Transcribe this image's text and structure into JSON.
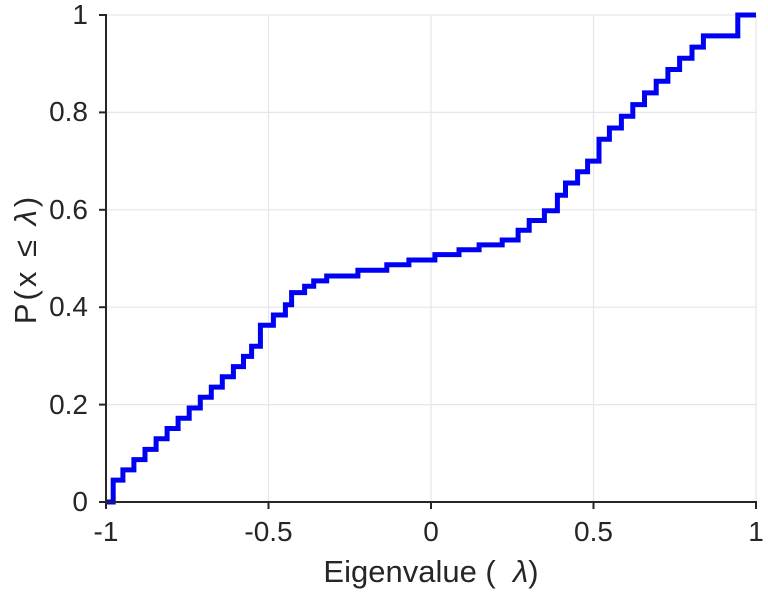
{
  "figure": {
    "background": "#ffffff",
    "axis_color": "#262626",
    "text_color": "#262626"
  },
  "chart_data": {
    "type": "line",
    "line_style": "stairs",
    "title": "",
    "xlabel": {
      "prefix": "Eigenvalue (  ",
      "lambda": "λ",
      "suffix": ")"
    },
    "ylabel": {
      "prefix": "P(x ≤ ",
      "lambda": "λ",
      "suffix": ")"
    },
    "xlim": [
      -1,
      1
    ],
    "ylim": [
      0,
      1
    ],
    "xticks": [
      {
        "value": -1,
        "label": "-1"
      },
      {
        "value": -0.5,
        "label": "-0.5"
      },
      {
        "value": 0,
        "label": "0"
      },
      {
        "value": 0.5,
        "label": "0.5"
      },
      {
        "value": 1,
        "label": "1"
      }
    ],
    "yticks": [
      {
        "value": 0,
        "label": "0"
      },
      {
        "value": 0.2,
        "label": "0.2"
      },
      {
        "value": 0.4,
        "label": "0.4"
      },
      {
        "value": 0.6,
        "label": "0.6"
      },
      {
        "value": 0.8,
        "label": "0.8"
      },
      {
        "value": 1,
        "label": "1"
      }
    ],
    "grid": {
      "show": true,
      "color": "#e6e6e6",
      "x_values": [
        -0.5,
        0,
        0.5,
        1
      ],
      "y_values": [
        0.2,
        0.4,
        0.6,
        0.8,
        1
      ]
    },
    "series": [
      {
        "name": "empirical-cdf-of-eigenvalues",
        "color": "#0000f5",
        "line_width": 5,
        "start": [
          -1,
          0
        ],
        "end_x": 1,
        "points": [
          [
            -0.978,
            0.045
          ],
          [
            -0.948,
            0.066
          ],
          [
            -0.914,
            0.087
          ],
          [
            -0.88,
            0.108
          ],
          [
            -0.846,
            0.13
          ],
          [
            -0.812,
            0.151
          ],
          [
            -0.778,
            0.172
          ],
          [
            -0.744,
            0.193
          ],
          [
            -0.71,
            0.215
          ],
          [
            -0.676,
            0.236
          ],
          [
            -0.642,
            0.257
          ],
          [
            -0.608,
            0.278
          ],
          [
            -0.577,
            0.299
          ],
          [
            -0.552,
            0.32
          ],
          [
            -0.525,
            0.363
          ],
          [
            -0.485,
            0.384
          ],
          [
            -0.448,
            0.405
          ],
          [
            -0.429,
            0.43
          ],
          [
            -0.389,
            0.443
          ],
          [
            -0.361,
            0.454
          ],
          [
            -0.321,
            0.464
          ],
          [
            -0.225,
            0.476
          ],
          [
            -0.136,
            0.487
          ],
          [
            -0.068,
            0.497
          ],
          [
            0.012,
            0.508
          ],
          [
            0.086,
            0.518
          ],
          [
            0.148,
            0.528
          ],
          [
            0.219,
            0.538
          ],
          [
            0.268,
            0.558
          ],
          [
            0.302,
            0.578
          ],
          [
            0.349,
            0.598
          ],
          [
            0.389,
            0.63
          ],
          [
            0.414,
            0.655
          ],
          [
            0.451,
            0.678
          ],
          [
            0.482,
            0.7
          ],
          [
            0.517,
            0.745
          ],
          [
            0.549,
            0.768
          ],
          [
            0.586,
            0.792
          ],
          [
            0.621,
            0.816
          ],
          [
            0.657,
            0.84
          ],
          [
            0.693,
            0.864
          ],
          [
            0.729,
            0.888
          ],
          [
            0.765,
            0.911
          ],
          [
            0.803,
            0.934
          ],
          [
            0.838,
            0.957
          ],
          [
            0.944,
            1.0
          ]
        ]
      }
    ]
  }
}
